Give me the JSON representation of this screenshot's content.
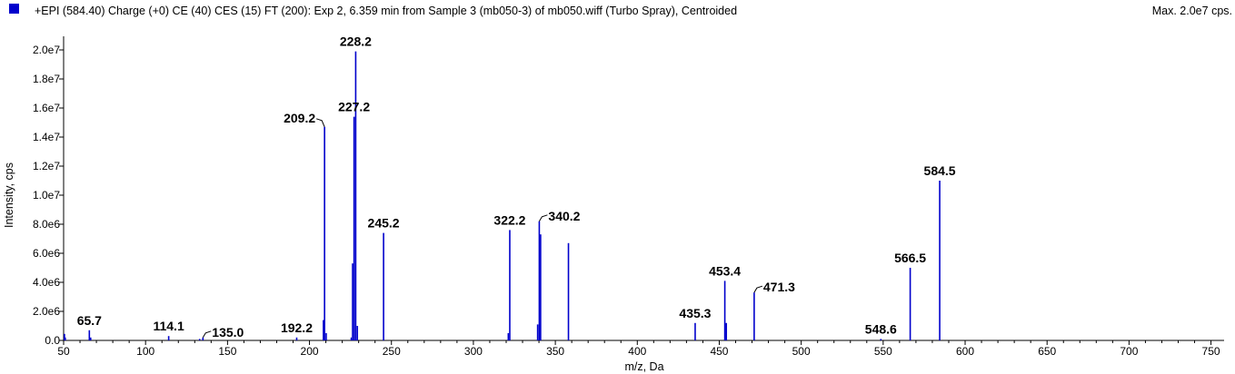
{
  "header": {
    "title": "+EPI (584.40) Charge (+0) CE (40) CES (15) FT (200): Exp 2, 6.359 min from Sample 3 (mb050-3) of mb050.wiff (Turbo Spray), Centroided",
    "max_label": "Max. 2.0e7 cps.",
    "legend_color": "#0000cc"
  },
  "chart_data": {
    "type": "bar",
    "title": "+EPI (584.40) Charge (+0) CE (40) CES (15) FT (200): Exp 2, 6.359 min from Sample 3 (mb050-3) of mb050.wiff (Turbo Spray), Centroided",
    "xlabel": "m/z, Da",
    "ylabel": "Intensity, cps",
    "xlim": [
      50,
      758
    ],
    "ylim": [
      0,
      20000000.0
    ],
    "grid": false,
    "bar_color": "#0000cc",
    "x_ticks": [
      50,
      100,
      150,
      200,
      250,
      300,
      350,
      400,
      450,
      500,
      550,
      600,
      650,
      700,
      750
    ],
    "y_ticks": [
      {
        "value": 0,
        "label": "0.0"
      },
      {
        "value": 2000000.0,
        "label": "2.0e6"
      },
      {
        "value": 4000000.0,
        "label": "4.0e6"
      },
      {
        "value": 6000000.0,
        "label": "6.0e6"
      },
      {
        "value": 8000000.0,
        "label": "8.0e6"
      },
      {
        "value": 10000000.0,
        "label": "1.0e7"
      },
      {
        "value": 12000000.0,
        "label": "1.2e7"
      },
      {
        "value": 14000000.0,
        "label": "1.4e7"
      },
      {
        "value": 16000000.0,
        "label": "1.6e7"
      },
      {
        "value": 18000000.0,
        "label": "1.8e7"
      },
      {
        "value": 20000000.0,
        "label": "2.0e7"
      }
    ],
    "peaks": [
      {
        "mz": 50.5,
        "intensity": 450000.0
      },
      {
        "mz": 51.0,
        "intensity": 200000.0
      },
      {
        "mz": 65.7,
        "intensity": 700000.0
      },
      {
        "mz": 66.5,
        "intensity": 200000.0
      },
      {
        "mz": 114.1,
        "intensity": 300000.0
      },
      {
        "mz": 133.0,
        "intensity": 100000.0
      },
      {
        "mz": 135.0,
        "intensity": 200000.0
      },
      {
        "mz": 192.2,
        "intensity": 200000.0
      },
      {
        "mz": 208.5,
        "intensity": 1400000.0
      },
      {
        "mz": 209.2,
        "intensity": 14700000.0
      },
      {
        "mz": 210.2,
        "intensity": 500000.0
      },
      {
        "mz": 225.5,
        "intensity": 200000.0
      },
      {
        "mz": 226.3,
        "intensity": 5300000.0
      },
      {
        "mz": 227.2,
        "intensity": 15400000.0
      },
      {
        "mz": 228.2,
        "intensity": 19900000.0
      },
      {
        "mz": 229.2,
        "intensity": 1000000.0
      },
      {
        "mz": 245.2,
        "intensity": 7400000.0
      },
      {
        "mz": 321.3,
        "intensity": 500000.0
      },
      {
        "mz": 322.2,
        "intensity": 7600000.0
      },
      {
        "mz": 339.2,
        "intensity": 1100000.0
      },
      {
        "mz": 340.2,
        "intensity": 8200000.0
      },
      {
        "mz": 341.0,
        "intensity": 7300000.0
      },
      {
        "mz": 358.0,
        "intensity": 6700000.0
      },
      {
        "mz": 435.3,
        "intensity": 1200000.0
      },
      {
        "mz": 453.4,
        "intensity": 4100000.0
      },
      {
        "mz": 454.3,
        "intensity": 1200000.0
      },
      {
        "mz": 471.3,
        "intensity": 3300000.0
      },
      {
        "mz": 548.6,
        "intensity": 100000.0
      },
      {
        "mz": 566.5,
        "intensity": 5000000.0
      },
      {
        "mz": 584.5,
        "intensity": 11000000.0
      }
    ],
    "peak_labels": [
      {
        "text": "65.7",
        "mz": 65.7,
        "intensity": 700000.0,
        "anchor": "center",
        "leader": false
      },
      {
        "text": "114.1",
        "mz": 114.1,
        "intensity": 300000.0,
        "anchor": "center",
        "leader": false
      },
      {
        "text": "135.0",
        "mz": 135.0,
        "intensity": 200000.0,
        "anchor": "right",
        "leader": true
      },
      {
        "text": "192.2",
        "mz": 192.2,
        "intensity": 200000.0,
        "anchor": "center",
        "leader": false
      },
      {
        "text": "209.2",
        "mz": 209.2,
        "intensity": 14700000.0,
        "anchor": "left",
        "leader": true
      },
      {
        "text": "227.2",
        "mz": 227.2,
        "intensity": 15400000.0,
        "anchor": "center",
        "leader": false
      },
      {
        "text": "228.2",
        "mz": 228.2,
        "intensity": 19900000.0,
        "anchor": "center",
        "leader": false
      },
      {
        "text": "245.2",
        "mz": 245.2,
        "intensity": 7400000.0,
        "anchor": "center",
        "leader": false
      },
      {
        "text": "322.2",
        "mz": 322.2,
        "intensity": 7600000.0,
        "anchor": "center",
        "leader": false
      },
      {
        "text": "340.2",
        "mz": 340.2,
        "intensity": 8200000.0,
        "anchor": "right",
        "leader": true
      },
      {
        "text": "435.3",
        "mz": 435.3,
        "intensity": 1200000.0,
        "anchor": "center",
        "leader": false
      },
      {
        "text": "453.4",
        "mz": 453.4,
        "intensity": 4100000.0,
        "anchor": "center",
        "leader": false
      },
      {
        "text": "471.3",
        "mz": 471.3,
        "intensity": 3300000.0,
        "anchor": "right",
        "leader": true
      },
      {
        "text": "548.6",
        "mz": 548.6,
        "intensity": 100000.0,
        "anchor": "center",
        "leader": false
      },
      {
        "text": "566.5",
        "mz": 566.5,
        "intensity": 5000000.0,
        "anchor": "center",
        "leader": false
      },
      {
        "text": "584.5",
        "mz": 584.5,
        "intensity": 11000000.0,
        "anchor": "center",
        "leader": false
      }
    ]
  }
}
